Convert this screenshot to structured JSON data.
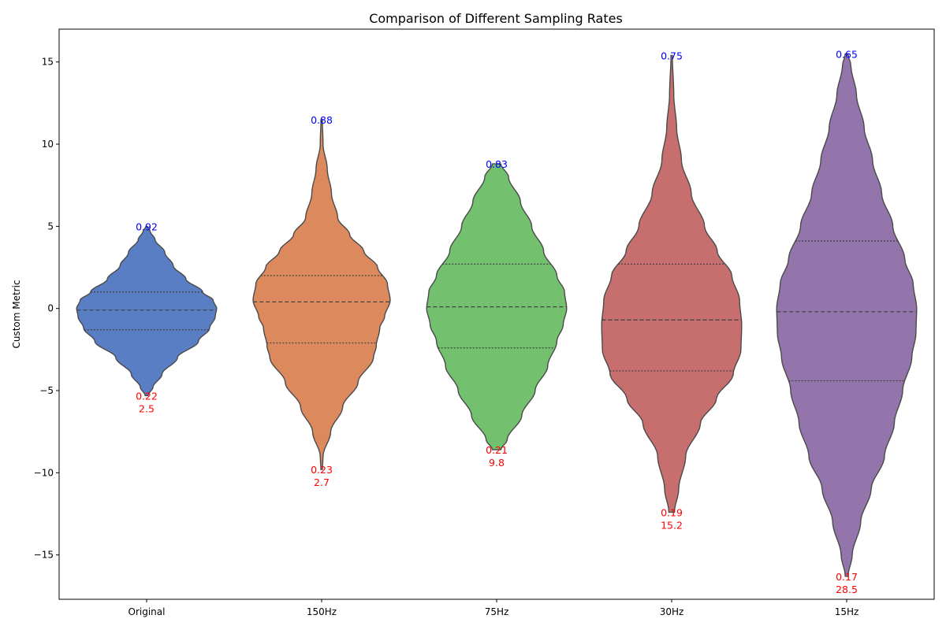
{
  "chart_data": {
    "type": "violin",
    "title": "Comparison of Different Sampling Rates",
    "xlabel": "",
    "ylabel": "Custom Metric",
    "ylim": [
      -17.7,
      17.0
    ],
    "yticks": [
      -15,
      -10,
      -5,
      0,
      5,
      10,
      15
    ],
    "categories": [
      "Original",
      "150Hz",
      "75Hz",
      "30Hz",
      "15Hz"
    ],
    "colors": [
      "#5a7ec4",
      "#dc8a5d",
      "#73c06f",
      "#c66f6e",
      "#9374ab"
    ],
    "annotation_colors": {
      "top": "#0000ff",
      "bottom": "#ff0000"
    },
    "grid": false,
    "violins": [
      {
        "name": "Original",
        "min": -5.3,
        "max": 5.0,
        "quartiles": [
          -1.3,
          -0.1,
          1.0
        ],
        "top_annotation": "0.92",
        "bottom_annotation": [
          "0.22",
          "2.5"
        ],
        "profile": [
          [
            -5.3,
            0.02
          ],
          [
            -4.8,
            0.09
          ],
          [
            -4.0,
            0.22
          ],
          [
            -3.0,
            0.44
          ],
          [
            -2.0,
            0.74
          ],
          [
            -1.2,
            0.9
          ],
          [
            -0.5,
            0.98
          ],
          [
            0,
            1.0
          ],
          [
            0.5,
            0.95
          ],
          [
            1.0,
            0.8
          ],
          [
            1.8,
            0.56
          ],
          [
            2.6,
            0.38
          ],
          [
            3.4,
            0.26
          ],
          [
            4.2,
            0.12
          ],
          [
            4.7,
            0.05
          ],
          [
            5.0,
            0.01
          ]
        ]
      },
      {
        "name": "150Hz",
        "min": -9.8,
        "max": 11.5,
        "quartiles": [
          -2.1,
          0.4,
          2.0
        ],
        "top_annotation": "0.88",
        "bottom_annotation": [
          "0.23",
          "2.7"
        ],
        "profile": [
          [
            -9.8,
            0.01
          ],
          [
            -9.0,
            0.02
          ],
          [
            -7.5,
            0.13
          ],
          [
            -6.0,
            0.3
          ],
          [
            -4.5,
            0.52
          ],
          [
            -3.0,
            0.74
          ],
          [
            -2.3,
            0.78
          ],
          [
            -1.2,
            0.83
          ],
          [
            -0.5,
            0.9
          ],
          [
            0.5,
            0.98
          ],
          [
            1.5,
            0.94
          ],
          [
            2.5,
            0.8
          ],
          [
            3.5,
            0.6
          ],
          [
            4.5,
            0.4
          ],
          [
            5.5,
            0.23
          ],
          [
            7.0,
            0.14
          ],
          [
            8.5,
            0.08
          ],
          [
            10.0,
            0.02
          ],
          [
            11.5,
            0.01
          ]
        ]
      },
      {
        "name": "75Hz",
        "min": -8.6,
        "max": 8.8,
        "quartiles": [
          -2.4,
          0.1,
          2.7
        ],
        "top_annotation": "0.83",
        "bottom_annotation": [
          "0.21",
          "9.8"
        ],
        "profile": [
          [
            -8.6,
            0.06
          ],
          [
            -8.0,
            0.15
          ],
          [
            -6.5,
            0.36
          ],
          [
            -5.0,
            0.55
          ],
          [
            -3.5,
            0.73
          ],
          [
            -2.0,
            0.86
          ],
          [
            -1.0,
            0.95
          ],
          [
            0,
            1.0
          ],
          [
            1.0,
            0.97
          ],
          [
            2.0,
            0.86
          ],
          [
            3.5,
            0.67
          ],
          [
            5.0,
            0.5
          ],
          [
            6.5,
            0.34
          ],
          [
            8.0,
            0.17
          ],
          [
            8.8,
            0.06
          ]
        ]
      },
      {
        "name": "30Hz",
        "min": -12.4,
        "max": 15.4,
        "quartiles": [
          -3.8,
          -0.7,
          2.7
        ],
        "top_annotation": "0.75",
        "bottom_annotation": [
          "0.19",
          "15.2"
        ],
        "profile": [
          [
            -12.4,
            0.04
          ],
          [
            -11.0,
            0.1
          ],
          [
            -9.0,
            0.2
          ],
          [
            -7.0,
            0.41
          ],
          [
            -5.5,
            0.64
          ],
          [
            -4.0,
            0.88
          ],
          [
            -2.5,
            0.99
          ],
          [
            -1.0,
            1.0
          ],
          [
            0.5,
            0.97
          ],
          [
            2.0,
            0.86
          ],
          [
            3.5,
            0.65
          ],
          [
            5.0,
            0.47
          ],
          [
            7.0,
            0.28
          ],
          [
            9.0,
            0.14
          ],
          [
            11.0,
            0.07
          ],
          [
            13.0,
            0.03
          ],
          [
            15.4,
            0.01
          ]
        ]
      },
      {
        "name": "15Hz",
        "min": -16.3,
        "max": 15.5,
        "quartiles": [
          -4.4,
          -0.2,
          4.1
        ],
        "top_annotation": "0.65",
        "bottom_annotation": [
          "0.17",
          "28.5"
        ],
        "profile": [
          [
            -16.3,
            0.02
          ],
          [
            -15.0,
            0.08
          ],
          [
            -13.0,
            0.2
          ],
          [
            -11.0,
            0.35
          ],
          [
            -9.0,
            0.54
          ],
          [
            -7.0,
            0.68
          ],
          [
            -5.0,
            0.8
          ],
          [
            -3.0,
            0.93
          ],
          [
            -1.5,
            0.99
          ],
          [
            0,
            1.0
          ],
          [
            1.5,
            0.95
          ],
          [
            3.0,
            0.83
          ],
          [
            5.0,
            0.66
          ],
          [
            7.0,
            0.5
          ],
          [
            9.0,
            0.37
          ],
          [
            11.0,
            0.25
          ],
          [
            13.0,
            0.14
          ],
          [
            14.8,
            0.06
          ],
          [
            15.5,
            0.02
          ]
        ]
      }
    ]
  }
}
